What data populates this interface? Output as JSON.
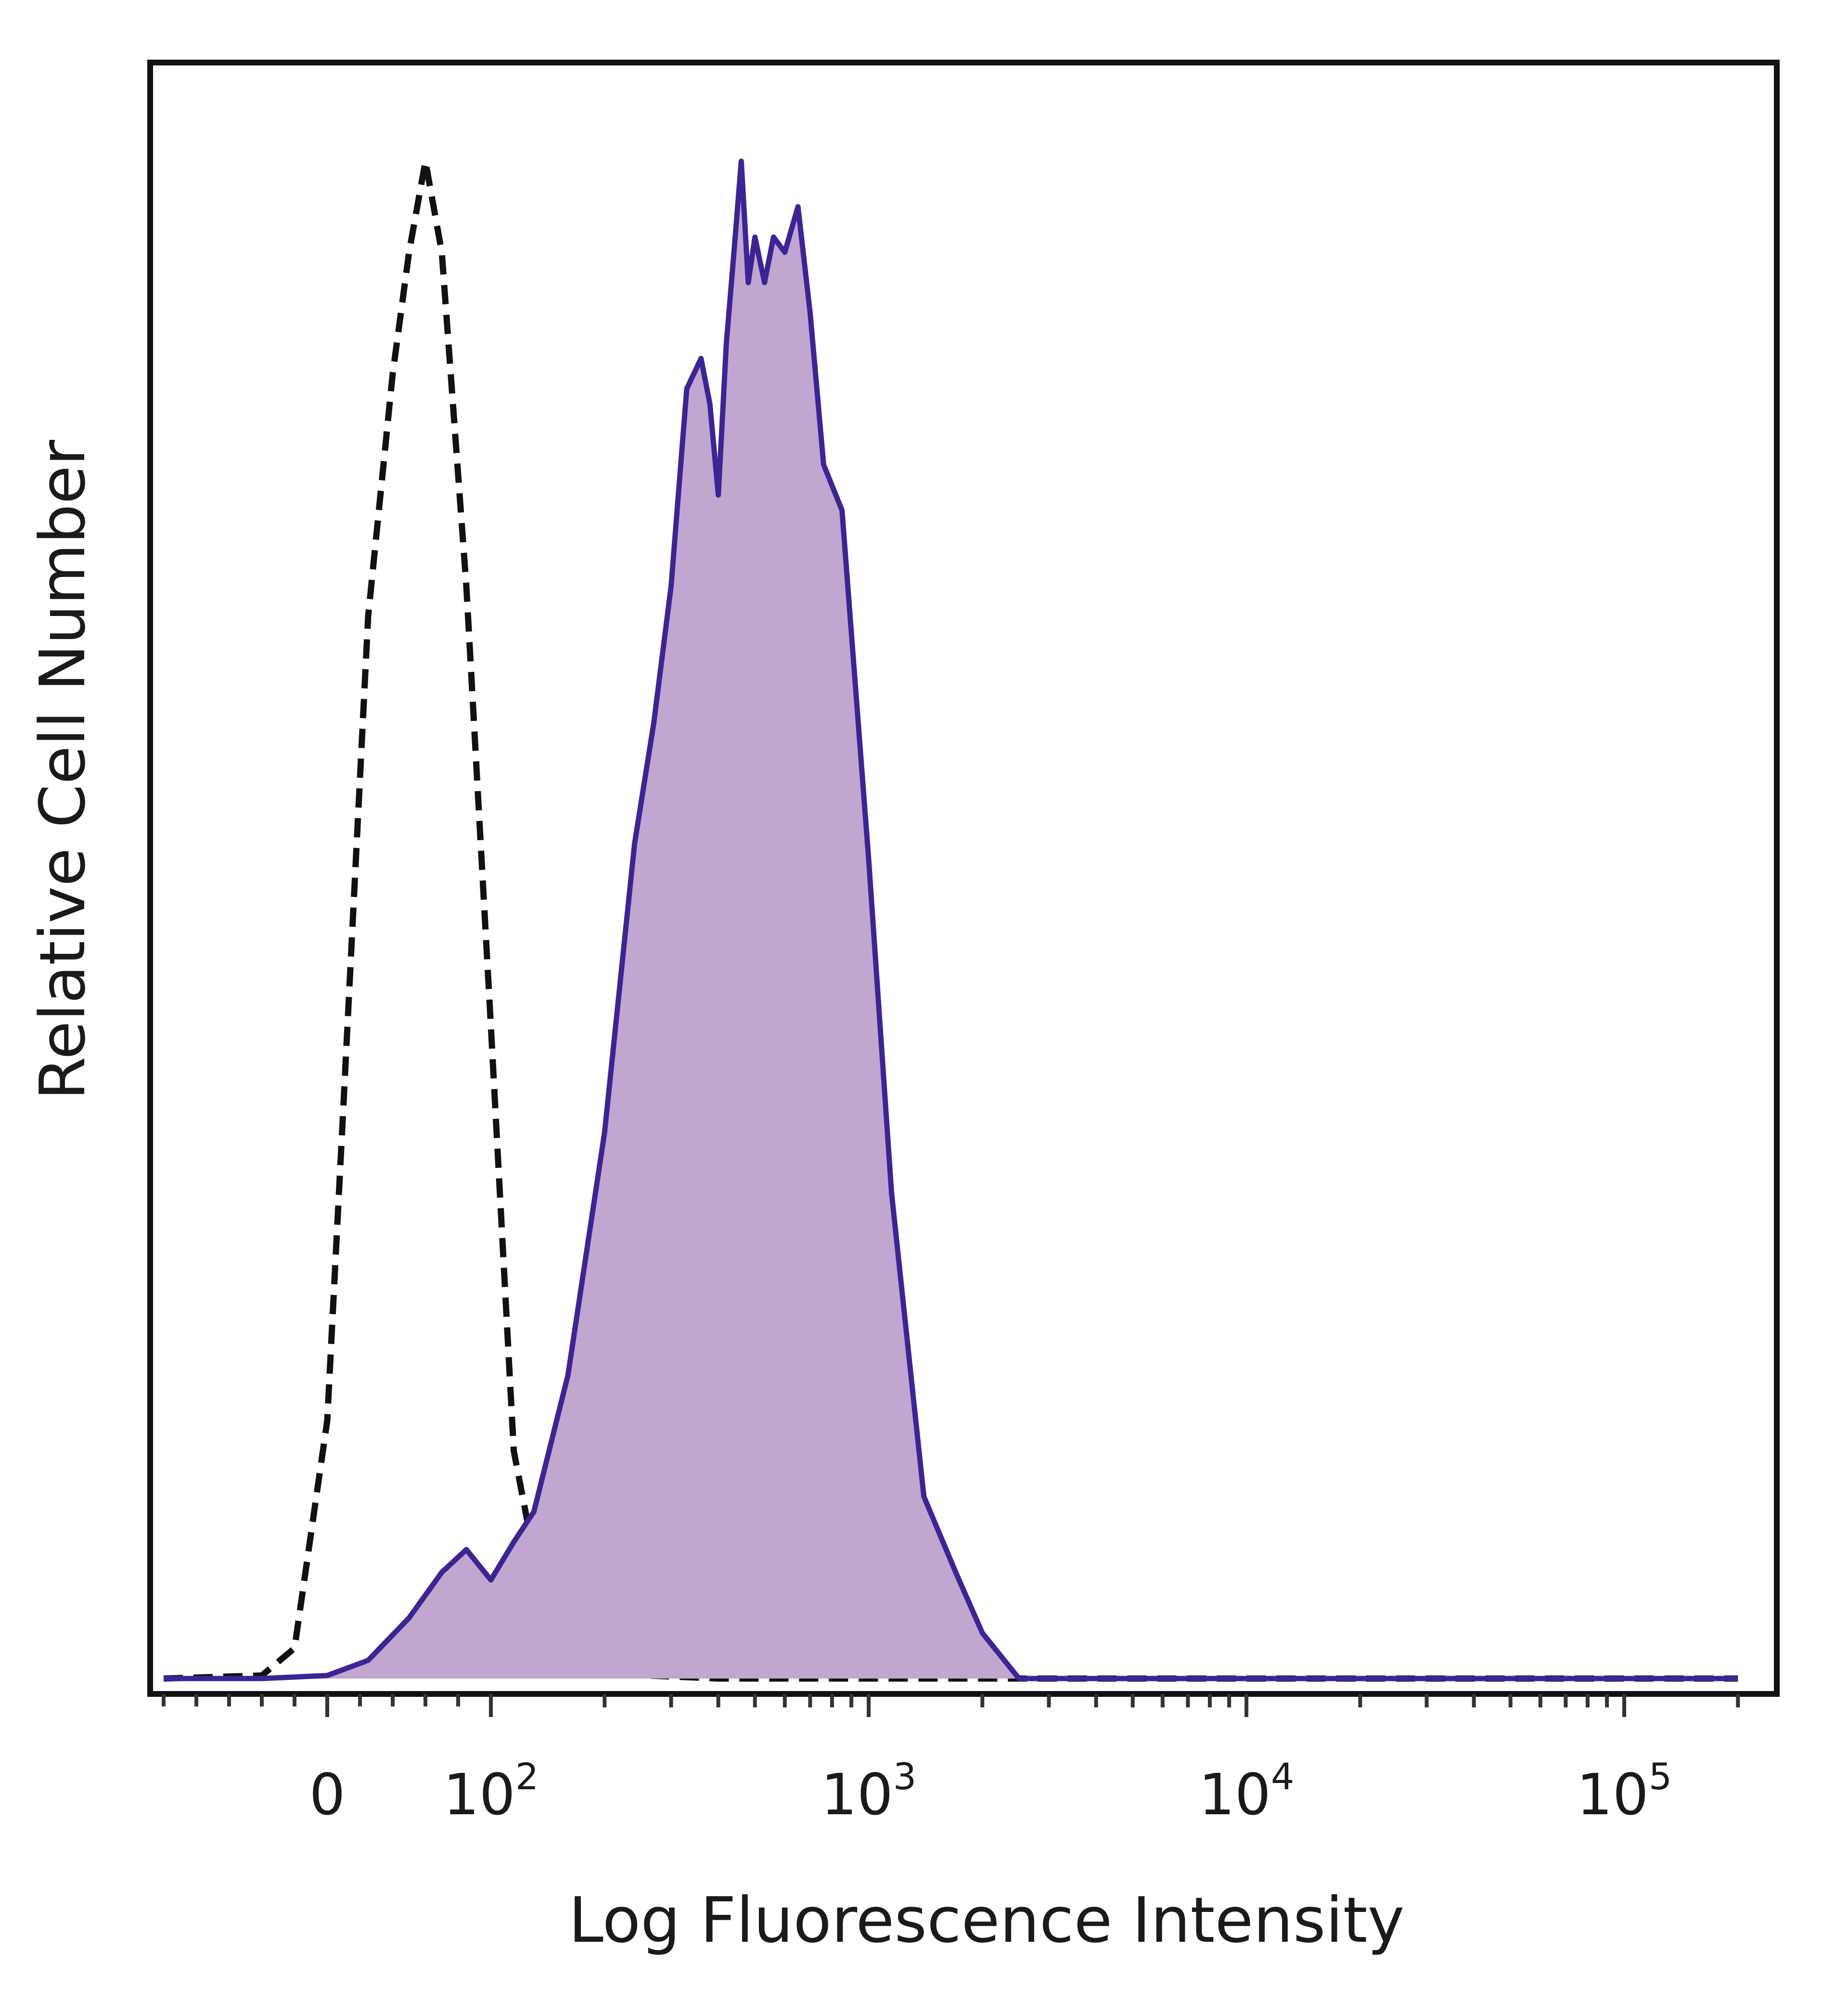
{
  "chart_data": {
    "type": "area",
    "title": "",
    "xlabel": "Log Fluorescence Intensity",
    "ylabel": "Relative Cell Number",
    "x_scale": "biexponential",
    "xlim": [
      -100,
      200000
    ],
    "ylim": [
      0,
      100
    ],
    "grid": false,
    "legend": "none",
    "x_ticks": [
      {
        "value": 0,
        "base": "0",
        "exp": ""
      },
      {
        "value": 100,
        "base": "10",
        "exp": "2"
      },
      {
        "value": 1000,
        "base": "10",
        "exp": "3"
      },
      {
        "value": 10000,
        "base": "10",
        "exp": "4"
      },
      {
        "value": 100000,
        "base": "10",
        "exp": "5"
      }
    ],
    "series": [
      {
        "style": "dashed",
        "fill": "none",
        "stroke": "#111111",
        "x": [
          -100,
          -40,
          -20,
          0,
          10,
          25,
          40,
          50,
          60,
          70,
          85,
          100,
          115,
          135,
          160,
          200,
          260,
          400,
          2000,
          200000
        ],
        "y": [
          0,
          0.2,
          2,
          17,
          38,
          70,
          86,
          94,
          100,
          94,
          72,
          43,
          15,
          6,
          2,
          0.6,
          0.2,
          0,
          0,
          0
        ]
      },
      {
        "style": "solid",
        "fill": "#c1a6d0",
        "stroke": "#3d2494",
        "x": [
          -100,
          -40,
          0,
          25,
          50,
          70,
          85,
          100,
          115,
          130,
          160,
          200,
          240,
          270,
          300,
          330,
          360,
          380,
          400,
          420,
          440,
          460,
          480,
          500,
          530,
          560,
          600,
          650,
          700,
          760,
          850,
          1000,
          1150,
          1400,
          1700,
          2000,
          2500,
          200000
        ],
        "y": [
          0,
          0,
          0.2,
          1.2,
          4,
          7,
          8.5,
          6.5,
          9,
          11,
          20,
          36,
          55,
          63,
          72,
          85,
          87,
          84,
          78,
          88,
          94,
          100,
          92,
          95,
          92,
          95,
          94,
          97,
          90,
          80,
          77,
          54,
          32,
          12,
          7,
          3,
          0,
          0
        ]
      }
    ]
  }
}
